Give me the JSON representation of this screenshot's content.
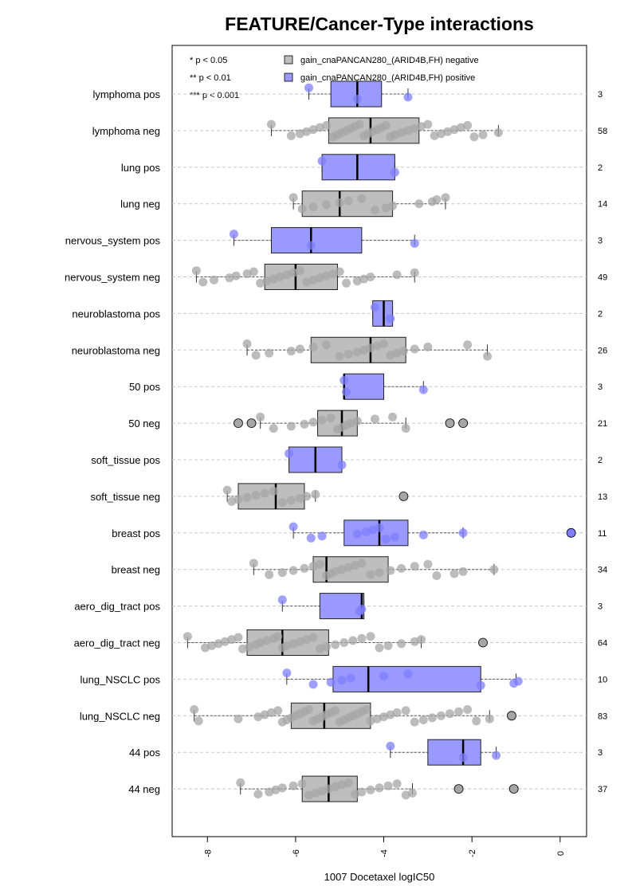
{
  "chart_data": {
    "type": "boxplot",
    "title": "FEATURE/Cancer-Type interactions",
    "xlabel": "1007 Docetaxel logIC50",
    "xlim": [
      -8.8,
      0.6
    ],
    "xticks": [
      -8,
      -6,
      -4,
      -2,
      0
    ],
    "grid": "horizontal dashed",
    "legend": {
      "placement": "top",
      "significance": [
        "* p < 0.05",
        "** p < 0.01",
        "*** p < 0.001"
      ],
      "series": [
        {
          "name": "gain_cnaPANCAN280_(ARID4B,FH) negative",
          "color": "#bebebe"
        },
        {
          "name": "gain_cnaPANCAN280_(ARID4B,FH) positive",
          "color": "#9999ff"
        }
      ]
    },
    "groups": [
      {
        "label": "lymphoma pos",
        "n": "3",
        "status": "pos",
        "q1": -5.2,
        "median": -4.6,
        "q3": -4.05,
        "wlo": -5.7,
        "whi": -3.45,
        "outliers": [],
        "points": [
          -5.7,
          -4.6,
          -3.45
        ]
      },
      {
        "label": "lymphoma neg",
        "n": "58",
        "status": "neg",
        "q1": -5.25,
        "median": -4.3,
        "q3": -3.2,
        "wlo": -6.55,
        "whi": -1.4,
        "outliers": [],
        "points": [
          -6.55,
          -6.1,
          -5.9,
          -5.75,
          -5.6,
          -5.45,
          -5.3,
          -5.15,
          -5.05,
          -4.95,
          -4.85,
          -4.75,
          -4.65,
          -4.55,
          -4.45,
          -4.35,
          -4.25,
          -4.15,
          -4.05,
          -3.95,
          -3.85,
          -3.75,
          -3.6,
          -3.45,
          -3.3,
          -3.15,
          -3.0,
          -2.85,
          -2.7,
          -2.55,
          -2.4,
          -2.25,
          -2.1,
          -1.95,
          -1.75,
          -1.4
        ]
      },
      {
        "label": "lung pos",
        "n": "2",
        "status": "pos",
        "q1": -5.4,
        "median": -4.6,
        "q3": -3.75,
        "wlo": -5.4,
        "whi": -3.75,
        "outliers": [],
        "points": [
          -5.4,
          -3.75
        ]
      },
      {
        "label": "lung neg",
        "n": "14",
        "status": "neg",
        "q1": -5.85,
        "median": -5.0,
        "q3": -3.8,
        "wlo": -6.05,
        "whi": -2.6,
        "outliers": [],
        "points": [
          -6.05,
          -5.85,
          -5.6,
          -5.3,
          -5.0,
          -4.8,
          -4.5,
          -4.2,
          -3.95,
          -3.8,
          -3.2,
          -2.9,
          -2.8,
          -2.6
        ]
      },
      {
        "label": "nervous_system pos",
        "n": "3",
        "status": "pos",
        "q1": -6.55,
        "median": -5.65,
        "q3": -4.5,
        "wlo": -7.4,
        "whi": -3.3,
        "outliers": [],
        "points": [
          -7.4,
          -5.65,
          -3.3
        ]
      },
      {
        "label": "nervous_system neg",
        "n": "49",
        "status": "neg",
        "q1": -6.7,
        "median": -6.0,
        "q3": -5.05,
        "wlo": -8.25,
        "whi": -3.3,
        "outliers": [],
        "points": [
          -8.25,
          -8.1,
          -7.85,
          -7.5,
          -7.35,
          -7.1,
          -6.95,
          -6.8,
          -6.65,
          -6.5,
          -6.35,
          -6.2,
          -6.05,
          -5.9,
          -5.75,
          -5.6,
          -5.45,
          -5.3,
          -5.15,
          -5.0,
          -4.85,
          -4.6,
          -4.45,
          -4.3,
          -3.7,
          -3.3
        ]
      },
      {
        "label": "neuroblastoma pos",
        "n": "2",
        "status": "pos",
        "q1": -4.25,
        "median": -4.0,
        "q3": -3.8,
        "wlo": -4.25,
        "whi": -3.8,
        "outliers": [],
        "points": [
          -4.2,
          -3.85
        ]
      },
      {
        "label": "neuroblastoma neg",
        "n": "26",
        "status": "neg",
        "q1": -5.65,
        "median": -4.3,
        "q3": -3.5,
        "wlo": -7.1,
        "whi": -1.65,
        "outliers": [],
        "points": [
          -7.1,
          -6.9,
          -6.6,
          -6.1,
          -5.9,
          -5.6,
          -5.3,
          -5.0,
          -4.8,
          -4.6,
          -4.45,
          -4.3,
          -4.15,
          -4.0,
          -3.85,
          -3.7,
          -3.55,
          -3.3,
          -3.0,
          -2.1,
          -1.65
        ]
      },
      {
        "label": "50 pos",
        "n": "3",
        "status": "pos",
        "q1": -4.9,
        "median": -4.9,
        "q3": -4.0,
        "wlo": -4.9,
        "whi": -3.1,
        "outliers": [],
        "points": [
          -4.9,
          -4.85,
          -3.1
        ]
      },
      {
        "label": "50 neg",
        "n": "21",
        "status": "neg",
        "q1": -5.5,
        "median": -4.95,
        "q3": -4.6,
        "wlo": -6.8,
        "whi": -3.5,
        "outliers": [
          -7.3,
          -7.0,
          -2.5,
          -2.2
        ],
        "points": [
          -6.8,
          -6.5,
          -6.1,
          -5.8,
          -5.6,
          -5.4,
          -5.2,
          -5.05,
          -4.95,
          -4.85,
          -4.75,
          -4.6,
          -4.2,
          -3.8,
          -3.5
        ]
      },
      {
        "label": "soft_tissue pos",
        "n": "2",
        "status": "pos",
        "q1": -6.15,
        "median": -5.55,
        "q3": -4.95,
        "wlo": -6.15,
        "whi": -4.95,
        "outliers": [],
        "points": [
          -6.15,
          -4.95
        ]
      },
      {
        "label": "soft_tissue neg",
        "n": "13",
        "status": "neg",
        "q1": -7.3,
        "median": -6.45,
        "q3": -5.8,
        "wlo": -7.55,
        "whi": -5.55,
        "outliers": [
          -3.55
        ],
        "points": [
          -7.55,
          -7.45,
          -7.3,
          -7.1,
          -6.9,
          -6.7,
          -6.5,
          -6.3,
          -6.1,
          -5.9,
          -5.75,
          -5.55
        ]
      },
      {
        "label": "breast pos",
        "n": "11",
        "status": "pos",
        "q1": -4.9,
        "median": -4.1,
        "q3": -3.45,
        "wlo": -6.05,
        "whi": -2.2,
        "outliers": [
          0.25
        ],
        "points": [
          -6.05,
          -5.65,
          -5.4,
          -4.6,
          -4.4,
          -4.25,
          -4.1,
          -3.95,
          -3.75,
          -3.1,
          -2.2
        ]
      },
      {
        "label": "breast neg",
        "n": "34",
        "status": "neg",
        "q1": -5.6,
        "median": -5.3,
        "q3": -3.9,
        "wlo": -6.95,
        "whi": -1.5,
        "outliers": [],
        "points": [
          -6.95,
          -6.6,
          -6.3,
          -6.05,
          -5.8,
          -5.6,
          -5.45,
          -5.3,
          -5.2,
          -5.1,
          -4.95,
          -4.8,
          -4.65,
          -4.5,
          -4.3,
          -4.1,
          -3.85,
          -3.6,
          -3.3,
          -3.0,
          -2.8,
          -2.4,
          -2.2,
          -1.5
        ]
      },
      {
        "label": "aero_dig_tract pos",
        "n": "3",
        "status": "pos",
        "q1": -5.45,
        "median": -4.5,
        "q3": -4.45,
        "wlo": -6.3,
        "whi": -4.45,
        "outliers": [],
        "points": [
          -6.3,
          -4.55,
          -4.5
        ]
      },
      {
        "label": "aero_dig_tract neg",
        "n": "64",
        "status": "neg",
        "q1": -7.1,
        "median": -6.3,
        "q3": -5.25,
        "wlo": -8.45,
        "whi": -3.15,
        "outliers": [
          -1.75
        ],
        "points": [
          -8.45,
          -8.05,
          -7.9,
          -7.75,
          -7.6,
          -7.45,
          -7.3,
          -7.2,
          -7.05,
          -6.9,
          -6.8,
          -6.65,
          -6.5,
          -6.4,
          -6.3,
          -6.2,
          -6.05,
          -5.9,
          -5.75,
          -5.6,
          -5.45,
          -5.3,
          -5.1,
          -4.9,
          -4.7,
          -4.5,
          -4.3,
          -4.1,
          -3.9,
          -3.6,
          -3.3,
          -3.15
        ]
      },
      {
        "label": "lung_NSCLC pos",
        "n": "10",
        "status": "pos",
        "q1": -5.15,
        "median": -4.35,
        "q3": -1.8,
        "wlo": -6.2,
        "whi": -1.0,
        "outliers": [],
        "points": [
          -6.2,
          -5.6,
          -5.2,
          -4.95,
          -4.75,
          -4.0,
          -3.45,
          -1.8,
          -1.05,
          -0.95
        ]
      },
      {
        "label": "lung_NSCLC neg",
        "n": "83",
        "status": "neg",
        "q1": -6.1,
        "median": -5.35,
        "q3": -4.3,
        "wlo": -8.3,
        "whi": -1.6,
        "outliers": [
          -1.1
        ],
        "points": [
          -8.3,
          -8.2,
          -7.3,
          -6.85,
          -6.7,
          -6.55,
          -6.4,
          -6.3,
          -6.2,
          -6.1,
          -6.0,
          -5.9,
          -5.8,
          -5.7,
          -5.6,
          -5.5,
          -5.4,
          -5.3,
          -5.2,
          -5.1,
          -5.0,
          -4.9,
          -4.8,
          -4.7,
          -4.6,
          -4.5,
          -4.4,
          -4.3,
          -4.15,
          -4.0,
          -3.85,
          -3.7,
          -3.5,
          -3.3,
          -3.1,
          -2.9,
          -2.7,
          -2.5,
          -2.3,
          -2.1,
          -1.9,
          -1.6
        ]
      },
      {
        "label": "44 pos",
        "n": "3",
        "status": "pos",
        "q1": -3.0,
        "median": -2.2,
        "q3": -1.8,
        "wlo": -3.85,
        "whi": -1.45,
        "outliers": [],
        "points": [
          -3.85,
          -2.2,
          -1.45
        ]
      },
      {
        "label": "44 neg",
        "n": "37",
        "status": "neg",
        "q1": -5.85,
        "median": -5.25,
        "q3": -4.6,
        "wlo": -7.25,
        "whi": -3.35,
        "outliers": [
          -2.3,
          -1.05
        ],
        "points": [
          -7.25,
          -6.85,
          -6.6,
          -6.45,
          -6.3,
          -6.05,
          -5.85,
          -5.7,
          -5.55,
          -5.4,
          -5.25,
          -5.1,
          -4.95,
          -4.8,
          -4.65,
          -4.5,
          -4.3,
          -4.1,
          -3.9,
          -3.7,
          -3.5,
          -3.35
        ]
      }
    ]
  }
}
